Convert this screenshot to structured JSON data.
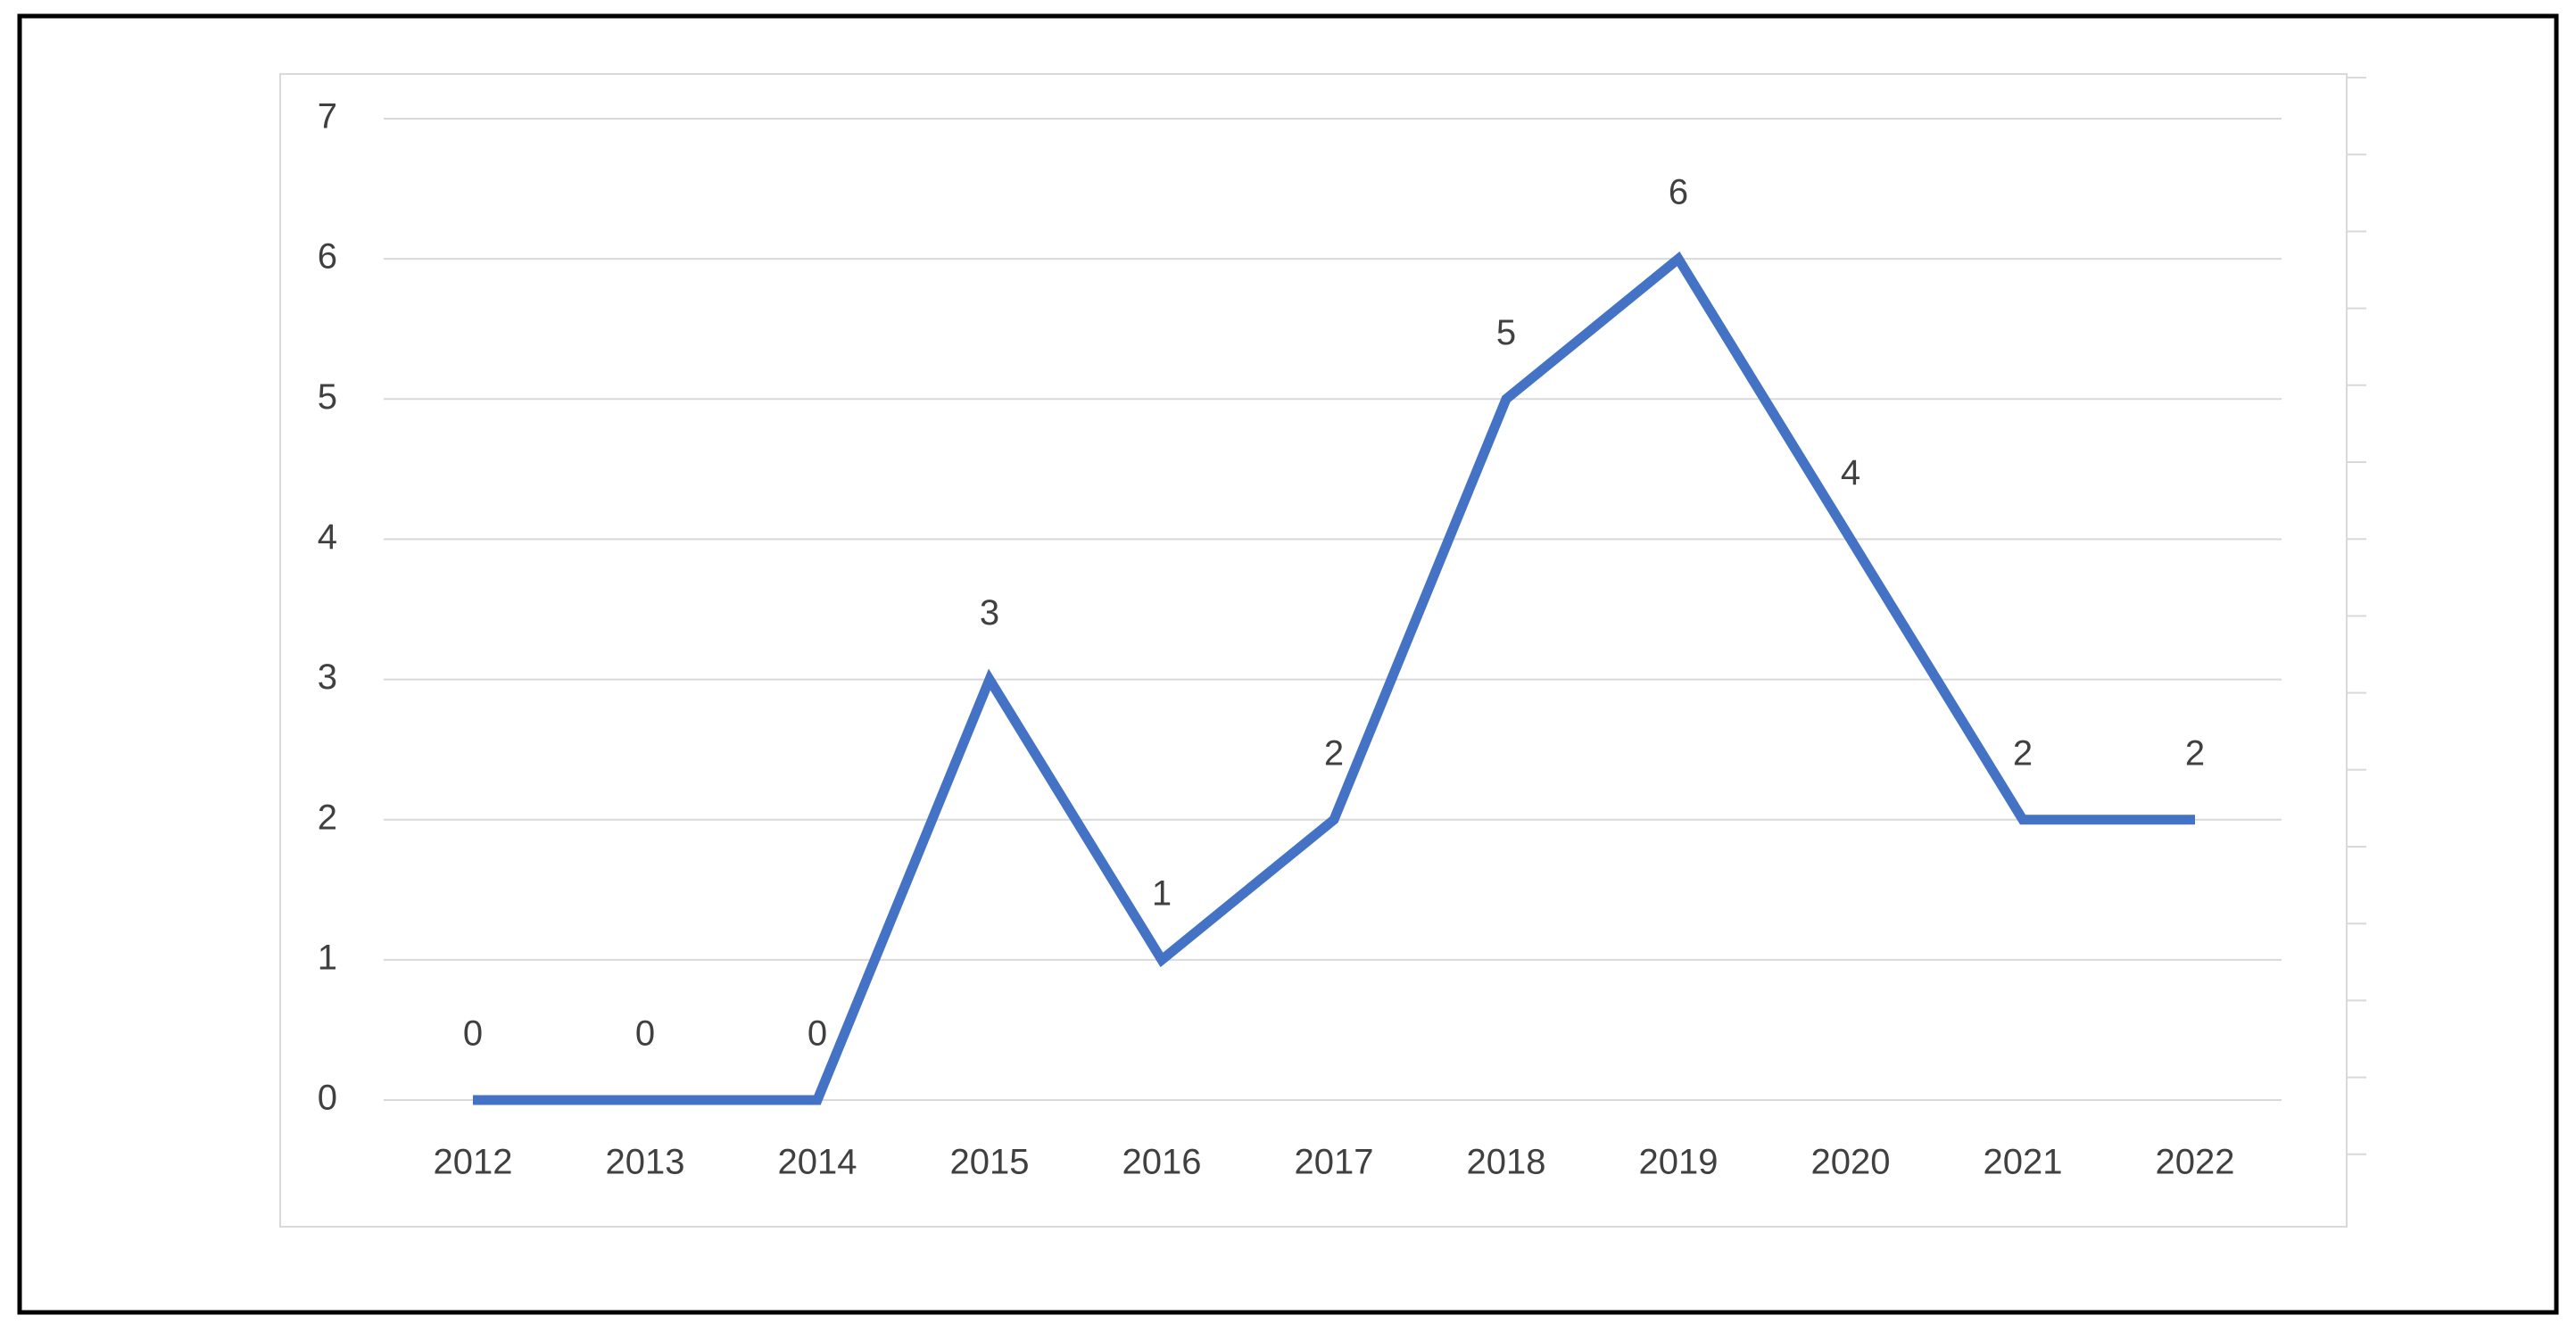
{
  "chart_data": {
    "type": "line",
    "categories": [
      "2012",
      "2013",
      "2014",
      "2015",
      "2016",
      "2017",
      "2018",
      "2019",
      "2020",
      "2021",
      "2022"
    ],
    "series": [
      {
        "color": "#4472c4",
        "values": [
          0,
          0,
          0,
          3,
          1,
          2,
          5,
          6,
          4,
          2,
          2
        ]
      }
    ],
    "ylim": [
      0,
      7
    ],
    "yticks": [
      0,
      1,
      2,
      3,
      4,
      5,
      6,
      7
    ],
    "grid": true
  }
}
